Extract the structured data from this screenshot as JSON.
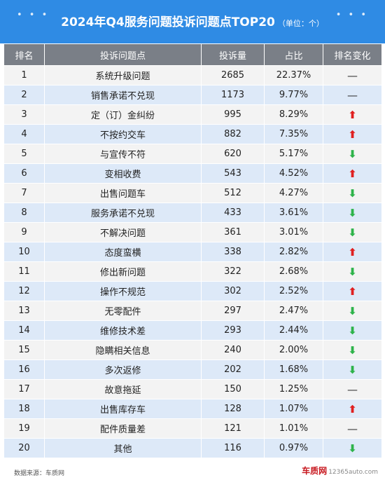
{
  "title": "2024年Q4服务问题投诉问题点TOP20",
  "unit": "（单位：个）",
  "columns": [
    "排名",
    "投诉问题点",
    "投诉量",
    "占比",
    "排名变化"
  ],
  "rows": [
    {
      "rank": "1",
      "issue": "系统升级问题",
      "count": "2685",
      "share": "22.37%",
      "change": "same"
    },
    {
      "rank": "2",
      "issue": "销售承诺不兑现",
      "count": "1173",
      "share": "9.77%",
      "change": "same"
    },
    {
      "rank": "3",
      "issue": "定（订）金纠纷",
      "count": "995",
      "share": "8.29%",
      "change": "up"
    },
    {
      "rank": "4",
      "issue": "不按约交车",
      "count": "882",
      "share": "7.35%",
      "change": "up"
    },
    {
      "rank": "5",
      "issue": "与宣传不符",
      "count": "620",
      "share": "5.17%",
      "change": "down"
    },
    {
      "rank": "6",
      "issue": "变相收费",
      "count": "543",
      "share": "4.52%",
      "change": "up"
    },
    {
      "rank": "7",
      "issue": "出售问题车",
      "count": "512",
      "share": "4.27%",
      "change": "down"
    },
    {
      "rank": "8",
      "issue": "服务承诺不兑现",
      "count": "433",
      "share": "3.61%",
      "change": "down"
    },
    {
      "rank": "9",
      "issue": "不解决问题",
      "count": "361",
      "share": "3.01%",
      "change": "down"
    },
    {
      "rank": "10",
      "issue": "态度蛮横",
      "count": "338",
      "share": "2.82%",
      "change": "up"
    },
    {
      "rank": "11",
      "issue": "修出新问题",
      "count": "322",
      "share": "2.68%",
      "change": "down"
    },
    {
      "rank": "12",
      "issue": "操作不规范",
      "count": "302",
      "share": "2.52%",
      "change": "up"
    },
    {
      "rank": "13",
      "issue": "无零配件",
      "count": "297",
      "share": "2.47%",
      "change": "down"
    },
    {
      "rank": "14",
      "issue": "维修技术差",
      "count": "293",
      "share": "2.44%",
      "change": "down"
    },
    {
      "rank": "15",
      "issue": "隐瞒相关信息",
      "count": "240",
      "share": "2.00%",
      "change": "down"
    },
    {
      "rank": "16",
      "issue": "多次返修",
      "count": "202",
      "share": "1.68%",
      "change": "down"
    },
    {
      "rank": "17",
      "issue": "故意拖延",
      "count": "150",
      "share": "1.25%",
      "change": "same"
    },
    {
      "rank": "18",
      "issue": "出售库存车",
      "count": "128",
      "share": "1.07%",
      "change": "up"
    },
    {
      "rank": "19",
      "issue": "配件质量差",
      "count": "121",
      "share": "1.01%",
      "change": "same"
    },
    {
      "rank": "20",
      "issue": "其他",
      "count": "116",
      "share": "0.97%",
      "change": "down"
    }
  ],
  "change_symbols": {
    "up": "⬆",
    "down": "⬇",
    "same": "—"
  },
  "colors": {
    "header_bg": "#2f8be4",
    "up": "#e02020",
    "down": "#2db34a"
  },
  "footer": {
    "source": "数据来源：车质网",
    "logo": "车质网",
    "domain": "12365auto.com"
  }
}
